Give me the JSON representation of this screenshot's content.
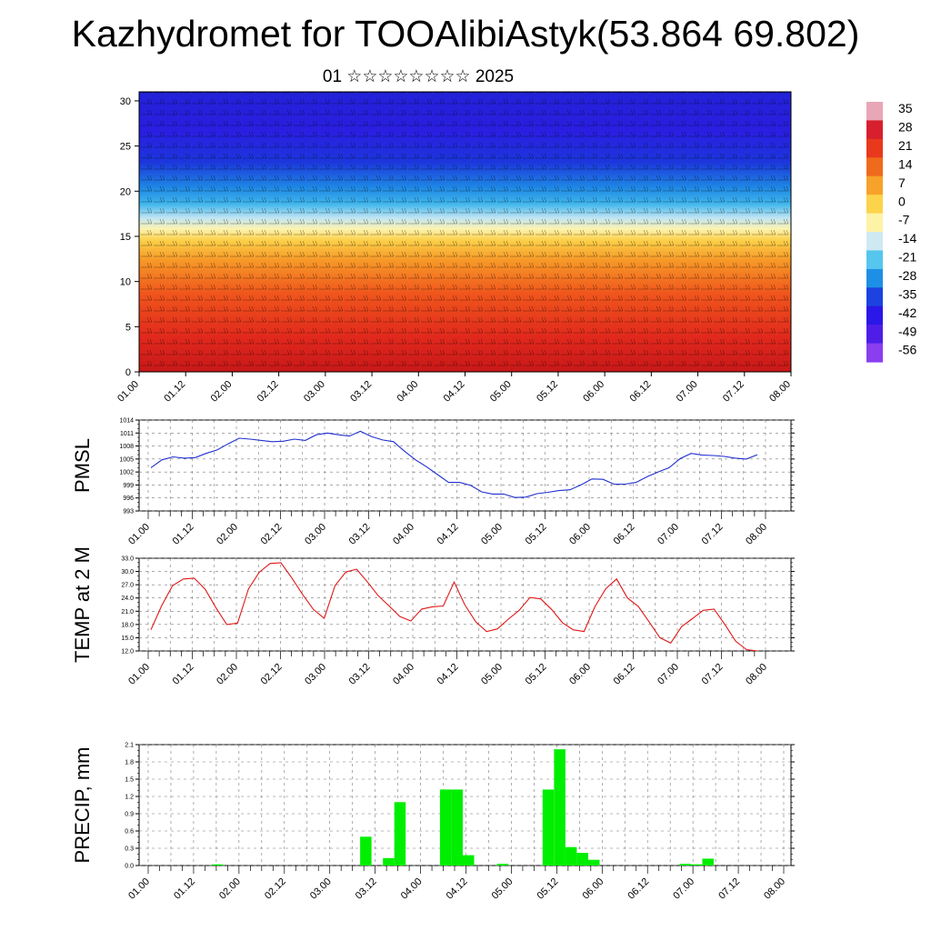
{
  "title": "Kazhydromet for TOOAlibiAstyk(53.864 69.802)",
  "subtitle": "01 ☆☆☆☆☆☆☆☆ 2025",
  "time_labels": [
    "01.00",
    "01.12",
    "02.00",
    "02.12",
    "03.00",
    "03.12",
    "04.00",
    "04.12",
    "05.00",
    "05.12",
    "06.00",
    "06.12",
    "07.00",
    "07.12",
    "08.00"
  ],
  "colorbar": {
    "labels": [
      "35",
      "28",
      "21",
      "14",
      "7",
      "0",
      "-7",
      "-14",
      "-21",
      "-28",
      "-35",
      "-42",
      "-49",
      "-56"
    ],
    "colors": [
      "#e8a6b6",
      "#d81f2e",
      "#e8391c",
      "#f06a1c",
      "#f7a22a",
      "#fcd34a",
      "#fdf3a6",
      "#cfe9f2",
      "#56c6ee",
      "#1e8fe6",
      "#1c43e0",
      "#2a17e8",
      "#4e1ee8",
      "#8a3ef0"
    ]
  },
  "chart_data": [
    {
      "type": "heatmap",
      "title": "Kazhydromet for TOOAlibiAstyk(53.864 69.802)",
      "subtitle": "01 ☆☆☆☆☆☆☆☆ 2025",
      "y_ticks": [
        0,
        5,
        10,
        15,
        20,
        25,
        30
      ],
      "ylim": [
        0,
        31
      ],
      "x_tick_labels": [
        "01.00",
        "01.12",
        "02.00",
        "02.12",
        "03.00",
        "03.12",
        "04.00",
        "04.12",
        "05.00",
        "05.12",
        "06.00",
        "06.12",
        "07.00",
        "07.12",
        "08.00"
      ],
      "value_range": [
        -56,
        35
      ],
      "overlay": "wind barbs"
    },
    {
      "type": "line",
      "ylabel": "PMSL",
      "ylim": [
        993,
        1014
      ],
      "y_ticks": [
        993,
        996,
        999,
        1002,
        1005,
        1008,
        1011,
        1014
      ],
      "color": "#1f2fd0",
      "values": [
        1003,
        1004.8,
        1005.5,
        1005.2,
        1005.3,
        1006.3,
        1007.1,
        1008.5,
        1009.8,
        1009.6,
        1009.3,
        1009.0,
        1009.1,
        1009.6,
        1009.3,
        1010.6,
        1011.0,
        1010.6,
        1010.3,
        1011.4,
        1010.2,
        1009.4,
        1009.0,
        1006.8,
        1004.8,
        1003.2,
        1001.4,
        999.6,
        999.6,
        998.9,
        997.4,
        996.9,
        996.9,
        996.1,
        996.2,
        997.0,
        997.3,
        997.7,
        997.9,
        999.0,
        1000.4,
        1000.3,
        999.2,
        999.2,
        999.6,
        1000.9,
        1002.0,
        1003.0,
        1005.1,
        1006.3,
        1005.9,
        1005.8,
        1005.6,
        1005.2,
        1005.0,
        1006.0
      ]
    },
    {
      "type": "line",
      "ylabel": "TEMP at 2 M",
      "ylim": [
        12,
        33
      ],
      "y_ticks": [
        "12.0",
        "15.0",
        "18.0",
        "21.0",
        "24.0",
        "27.0",
        "30.0",
        "33.0"
      ],
      "color": "#e01818",
      "values": [
        16.8,
        22.3,
        26.8,
        28.3,
        28.5,
        26.0,
        21.8,
        18.0,
        18.3,
        26.0,
        29.8,
        31.8,
        32.0,
        28.6,
        24.8,
        21.4,
        19.4,
        26.8,
        29.9,
        30.5,
        27.6,
        24.5,
        22.2,
        19.8,
        18.8,
        21.5,
        22.0,
        22.2,
        27.6,
        22.4,
        18.6,
        16.4,
        17.0,
        19.2,
        21.2,
        24.1,
        23.8,
        21.4,
        18.4,
        16.8,
        16.4,
        22.0,
        26.1,
        28.3,
        24.0,
        22.1,
        18.6,
        15.0,
        13.8,
        17.5,
        19.3,
        21.2,
        21.5,
        18.0,
        14.2,
        12.3,
        12.0
      ]
    },
    {
      "type": "bar",
      "ylabel": "PRECIP, mm",
      "ylim": [
        0,
        2.1
      ],
      "y_ticks": [
        "0.0",
        "0.3",
        "0.6",
        "0.9",
        "1.2",
        "1.5",
        "1.8",
        "2.1"
      ],
      "color": "#00ee00",
      "values": [
        0,
        0,
        0,
        0,
        0,
        0,
        0.02,
        0,
        0,
        0,
        0,
        0,
        0,
        0,
        0,
        0,
        0,
        0,
        0,
        0.5,
        0,
        0.13,
        1.1,
        0,
        0,
        0,
        1.32,
        1.32,
        0.18,
        0,
        0,
        0.03,
        0,
        0,
        0,
        1.32,
        2.02,
        0.32,
        0.22,
        0.1,
        0,
        0,
        0,
        0,
        0,
        0,
        0,
        0.03,
        0.02,
        0.12,
        0,
        0,
        0,
        0,
        0,
        0
      ]
    }
  ]
}
